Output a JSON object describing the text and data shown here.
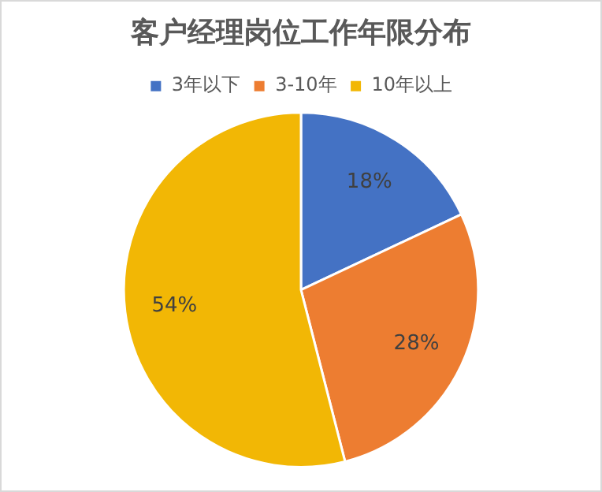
{
  "chart_data": {
    "type": "pie",
    "title": "客户经理岗位工作年限分布",
    "categories": [
      "3年以下",
      "3-10年",
      "10年以上"
    ],
    "values": [
      18,
      28,
      54
    ],
    "colors": [
      "#4472c4",
      "#ed7d31",
      "#f2b705"
    ],
    "value_labels": [
      "18%",
      "28%",
      "54%"
    ],
    "legend": "top"
  }
}
